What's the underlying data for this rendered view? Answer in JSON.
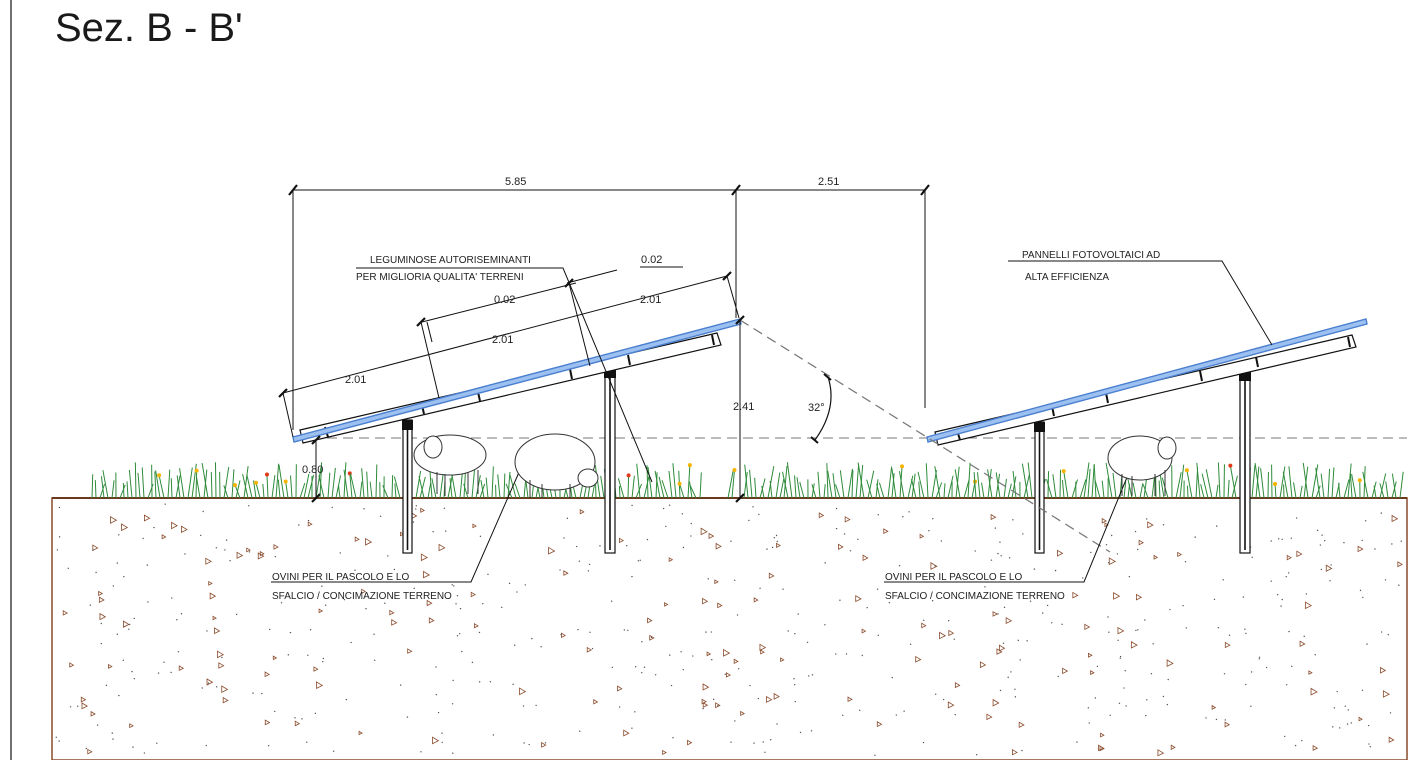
{
  "title": "Sez. B - B'",
  "dimensions": {
    "span_width": "5.85",
    "row_gap": "2.51",
    "module_lower": "2.01",
    "module_middle": "2.01",
    "module_upper": "2.01",
    "gap_lower": "0.02",
    "gap_upper": "0.02",
    "top_height": "2.41",
    "bottom_height": "0.80",
    "tilt_angle": "32°"
  },
  "labels": {
    "legumes_line1": "LEGUMINOSE AUTORISEMINANTI",
    "legumes_line2": "PER MIGLIORIA QUALITA' TERRENI",
    "panels_line1": "PANNELLI FOTOVOLTAICI AD",
    "panels_line2": "ALTA EFFICIENZA",
    "sheep_left_line1": "OVINI PER IL PASCOLO E LO",
    "sheep_left_line2": "SFALCIO / CONCIMAZIONE TERRENO",
    "sheep_right_line1": "OVINI PER IL PASCOLO E LO",
    "sheep_right_line2": "SFALCIO / CONCIMAZIONE TERRENO"
  },
  "colors": {
    "panel_blue": "#4a7fd0",
    "soil_brown": "#8a4a2a",
    "grass_green": "#2e8b3a",
    "flower_orange": "#f5b400",
    "flower_red": "#e03a1a"
  }
}
